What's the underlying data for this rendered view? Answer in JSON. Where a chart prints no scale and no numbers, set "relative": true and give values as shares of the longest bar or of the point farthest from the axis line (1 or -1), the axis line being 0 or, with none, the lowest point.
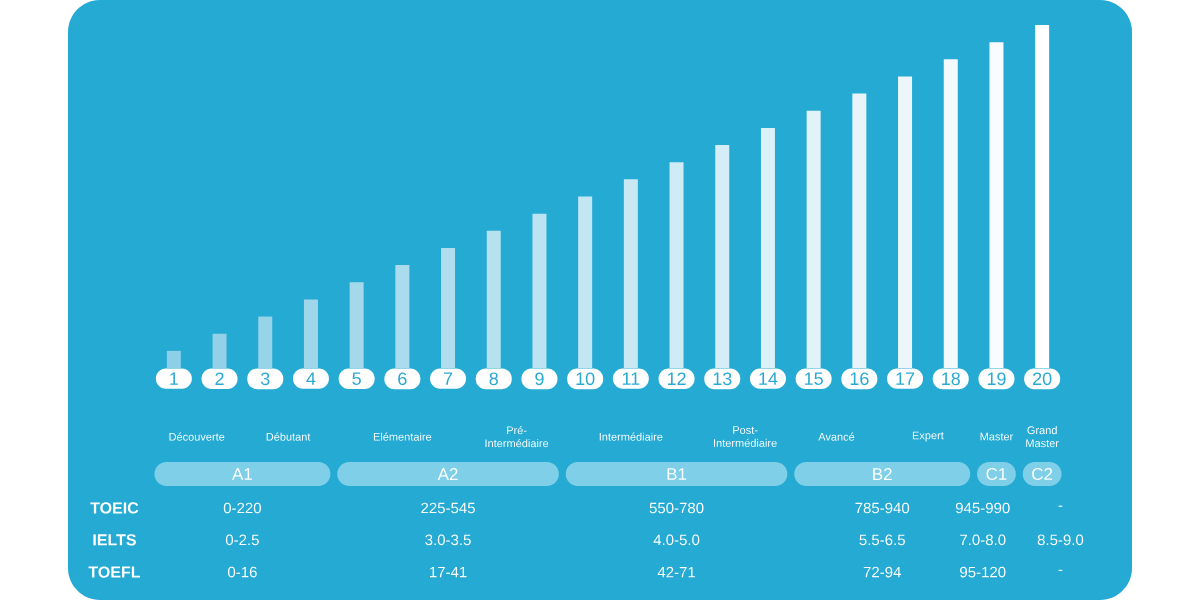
{
  "chart_data": {
    "type": "bar",
    "relative": true,
    "categories": [
      "1",
      "2",
      "3",
      "4",
      "5",
      "6",
      "7",
      "8",
      "9",
      "10",
      "11",
      "12",
      "13",
      "14",
      "15",
      "16",
      "17",
      "18",
      "19",
      "20"
    ],
    "values": [
      0.05,
      0.1,
      0.15,
      0.2,
      0.25,
      0.3,
      0.35,
      0.4,
      0.45,
      0.5,
      0.55,
      0.6,
      0.65,
      0.7,
      0.75,
      0.8,
      0.85,
      0.9,
      0.95,
      1.0
    ],
    "colors": [
      "#8ccfe6",
      "#92d1e7",
      "#98d4e8",
      "#9fd6e9",
      "#a4d9eb",
      "#aadced",
      "#b0deee",
      "#b6e1ef",
      "#bce3f1",
      "#c2e6f2",
      "#c8e8f3",
      "#cfebf5",
      "#d5edf6",
      "#dbf0f7",
      "#e1f2f8",
      "#e7f5fa",
      "#edf7fb",
      "#f3fafc",
      "#f9fcfe",
      "#ffffff"
    ],
    "annotations": [
      "Découverte",
      "Débutant",
      "Elémentaire",
      "Pré-Intermédiaire",
      "Intermédiaire",
      "Post-Intermédiaire",
      "Avancé",
      "Expert",
      "Master",
      "Grand Master",
      "A1",
      "A2",
      "B1",
      "B2",
      "C1",
      "C2",
      "TOEIC",
      "0-220",
      "225-545",
      "550-780",
      "785-940",
      "945-990",
      "-",
      "IELTS",
      "0-2.5",
      "3.0-3.5",
      "4.0-5.0",
      "5.5-6.5",
      "7.0-8.0",
      "8.5-9.0",
      "TOEFL",
      "0-16",
      "17-41",
      "42-71",
      "72-94",
      "95-120",
      "-"
    ]
  }
}
